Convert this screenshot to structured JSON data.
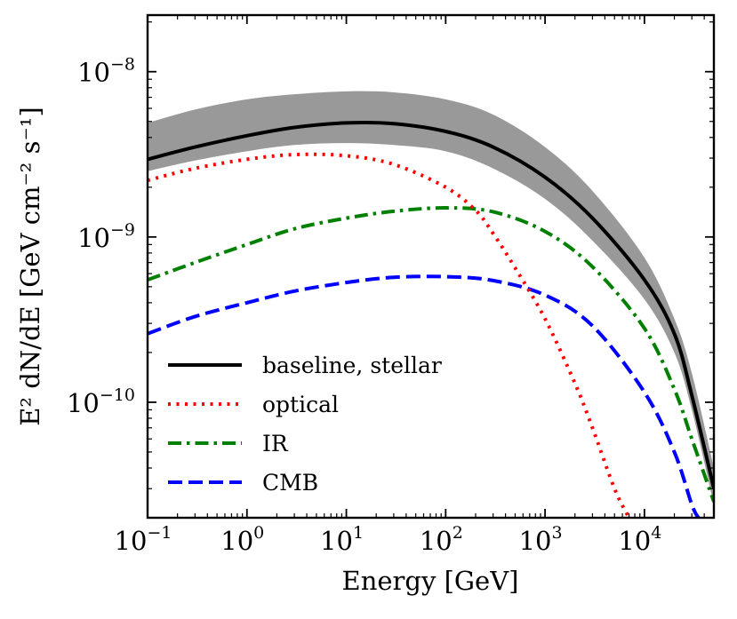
{
  "chart_data": {
    "type": "line",
    "xlabel": "Energy [GeV]",
    "ylabel": "E² dN/dE [GeV cm⁻² s⁻¹]",
    "xscale": "log",
    "yscale": "log",
    "xlim": [
      0.1,
      50000
    ],
    "ylim": [
      2e-11,
      2.2e-08
    ],
    "legend_position": "bottom-left",
    "grid": false,
    "x_tick_labels": [
      {
        "base": "10",
        "exp": "−1",
        "value": 0.1
      },
      {
        "base": "10",
        "exp": "0",
        "value": 1
      },
      {
        "base": "10",
        "exp": "1",
        "value": 10
      },
      {
        "base": "10",
        "exp": "2",
        "value": 100
      },
      {
        "base": "10",
        "exp": "3",
        "value": 1000
      },
      {
        "base": "10",
        "exp": "4",
        "value": 10000
      }
    ],
    "y_tick_labels": [
      {
        "base": "10",
        "exp": "−10",
        "value": 1e-10
      },
      {
        "base": "10",
        "exp": "−9",
        "value": 1e-09
      },
      {
        "base": "10",
        "exp": "−8",
        "value": 1e-08
      }
    ],
    "band": {
      "color": "#999999",
      "x": [
        0.1,
        0.3,
        1,
        3,
        10,
        30,
        100,
        300,
        1000,
        3000,
        10000,
        20000,
        30000,
        50000
      ],
      "upper": [
        4.9e-09,
        5.9e-09,
        6.8e-09,
        7.3e-09,
        7.6e-09,
        7.5e-09,
        6.8e-09,
        5.5e-09,
        3.5e-09,
        1.9e-09,
        7.5e-10,
        3.2e-10,
        1.5e-10,
        4e-11
      ],
      "lower": [
        2.5e-09,
        2.9e-09,
        3.3e-09,
        3.6e-09,
        3.7e-09,
        3.6e-09,
        3.3e-09,
        2.6e-09,
        1.7e-09,
        9.5e-10,
        4.2e-10,
        2e-10,
        9e-11,
        2.4e-11
      ]
    },
    "series": [
      {
        "name": "baseline, stellar",
        "color": "#000000",
        "style": "solid",
        "x": [
          0.1,
          0.3,
          1,
          3,
          10,
          30,
          100,
          300,
          1000,
          3000,
          10000,
          20000,
          30000,
          50000
        ],
        "values": [
          2.95e-09,
          3.5e-09,
          4.1e-09,
          4.6e-09,
          4.9e-09,
          4.85e-09,
          4.35e-09,
          3.5e-09,
          2.3e-09,
          1.3e-09,
          5.5e-10,
          2.6e-10,
          1.1e-10,
          3e-11
        ]
      },
      {
        "name": "optical",
        "color": "#ff0000",
        "style": "dotted",
        "x": [
          0.1,
          0.3,
          1,
          3,
          10,
          30,
          100,
          200,
          300,
          500,
          1000,
          2000,
          3000,
          5000,
          7000
        ],
        "values": [
          2.2e-09,
          2.6e-09,
          2.95e-09,
          3.15e-09,
          3.1e-09,
          2.75e-09,
          2e-09,
          1.45e-09,
          1.05e-09,
          6.5e-10,
          3.2e-10,
          1.3e-10,
          7e-11,
          3e-11,
          2e-11
        ]
      },
      {
        "name": "IR",
        "color": "#008000",
        "style": "dashdot",
        "x": [
          0.1,
          0.3,
          1,
          3,
          10,
          30,
          100,
          300,
          1000,
          3000,
          10000,
          20000,
          30000,
          50000
        ],
        "values": [
          5.5e-10,
          7e-10,
          9e-10,
          1.12e-09,
          1.3e-09,
          1.43e-09,
          1.5e-09,
          1.42e-09,
          1.08e-09,
          6.6e-10,
          2.8e-10,
          1.2e-10,
          6e-11,
          2.5e-11
        ]
      },
      {
        "name": "CMB",
        "color": "#0000ff",
        "style": "dashed",
        "x": [
          0.1,
          0.3,
          1,
          3,
          10,
          30,
          100,
          300,
          1000,
          3000,
          10000,
          20000,
          30000,
          35000
        ],
        "values": [
          2.6e-10,
          3.3e-10,
          4e-10,
          4.7e-10,
          5.3e-10,
          5.7e-10,
          5.75e-10,
          5.45e-10,
          4.45e-10,
          2.9e-10,
          1.15e-10,
          5e-11,
          2.4e-11,
          2e-11
        ]
      }
    ]
  }
}
